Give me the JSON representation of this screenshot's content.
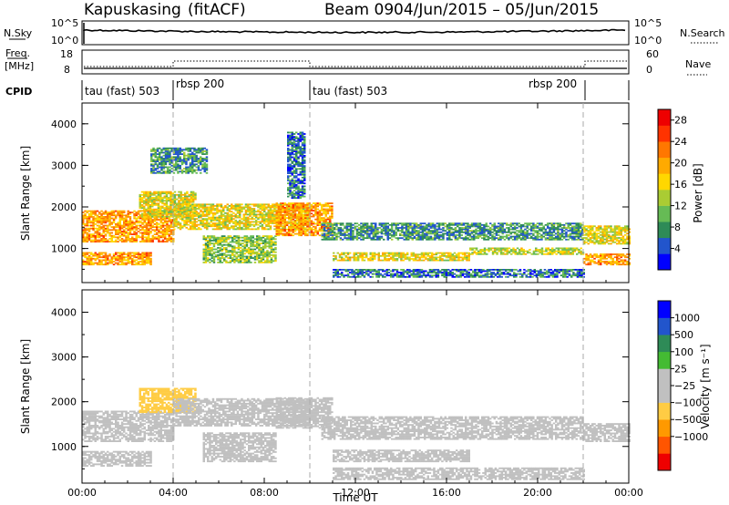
{
  "header": {
    "station": "Kapuskasing",
    "mode": "(fitACF)",
    "beam": "Beam 09",
    "dates": "04/Jun/2015 – 05/Jun/2015"
  },
  "top_panels": {
    "nsky_label": "N.Sky",
    "nsky_ticks": [
      "10^5",
      "10^0"
    ],
    "nsearch_label": "N.Search",
    "freq_label_line1": "Freq.",
    "freq_label_line2": "[MHz]",
    "freq_ticks": [
      "18",
      "8"
    ],
    "nave_ticks": [
      "60",
      "0"
    ],
    "nave_label": "Nave",
    "cpid_label": "CPID",
    "cpid_segments": [
      {
        "label": "tau (fast) 503",
        "start_hr": 0,
        "end_hr": 4
      },
      {
        "label": "rbsp 200",
        "start_hr": 4,
        "end_hr": 10
      },
      {
        "label": "tau (fast) 503",
        "start_hr": 10,
        "end_hr": 22
      },
      {
        "label": "rbsp 200",
        "start_hr": 22,
        "end_hr": 24
      }
    ]
  },
  "colors": {
    "power": [
      "#0000ff",
      "#2255cc",
      "#2e8b57",
      "#66bb55",
      "#aacc33",
      "#ffd700",
      "#ffaa00",
      "#ff7700",
      "#ff3300",
      "#ee0000"
    ],
    "velocity": [
      "#ee0000",
      "#ff5500",
      "#ff9900",
      "#ffcc44",
      "#c0c0c0",
      "#c0c0c0",
      "#44bb33",
      "#2e8b57",
      "#2255cc",
      "#0000ff"
    ]
  },
  "chart_data": [
    {
      "type": "heatmap",
      "name": "power",
      "title": "",
      "xlabel": "Time UT",
      "ylabel": "Slant Range [km]",
      "xlim": [
        0,
        24
      ],
      "ylim": [
        180,
        4500
      ],
      "x_ticks": [
        "00:00",
        "04:00",
        "08:00",
        "12:00",
        "16:00",
        "20:00",
        "00:00"
      ],
      "y_ticks": [
        1000,
        2000,
        3000,
        4000
      ],
      "colorbar": {
        "label": "Power [dB]",
        "ticks": [
          4,
          8,
          12,
          16,
          20,
          24,
          28
        ],
        "range": [
          0,
          30
        ]
      },
      "bands": [
        {
          "t0": 0.0,
          "t1": 4.0,
          "r0": 1150,
          "r1": 1900,
          "value": 20
        },
        {
          "t0": 0.0,
          "t1": 3.0,
          "r0": 600,
          "r1": 900,
          "value": 20
        },
        {
          "t0": 2.5,
          "t1": 5.0,
          "r0": 1750,
          "r1": 2350,
          "value": 16
        },
        {
          "t0": 3.0,
          "t1": 5.5,
          "r0": 2800,
          "r1": 3400,
          "value": 8
        },
        {
          "t0": 4.0,
          "t1": 10.0,
          "r0": 1450,
          "r1": 2050,
          "value": 16
        },
        {
          "t0": 5.3,
          "t1": 8.5,
          "r0": 650,
          "r1": 1300,
          "value": 12
        },
        {
          "t0": 8.5,
          "t1": 11.0,
          "r0": 1300,
          "r1": 2100,
          "value": 20
        },
        {
          "t0": 9.0,
          "t1": 9.8,
          "r0": 2200,
          "r1": 3800,
          "value": 6
        },
        {
          "t0": 10.5,
          "t1": 22.0,
          "r0": 1200,
          "r1": 1600,
          "value": 8
        },
        {
          "t0": 11.0,
          "t1": 17.0,
          "r0": 700,
          "r1": 900,
          "value": 16
        },
        {
          "t0": 11.0,
          "t1": 22.0,
          "r0": 300,
          "r1": 500,
          "value": 6
        },
        {
          "t0": 17.0,
          "t1": 22.0,
          "r0": 850,
          "r1": 1000,
          "value": 14
        },
        {
          "t0": 22.0,
          "t1": 24.0,
          "r0": 1100,
          "r1": 1550,
          "value": 16
        },
        {
          "t0": 22.0,
          "t1": 24.0,
          "r0": 600,
          "r1": 850,
          "value": 20
        }
      ]
    },
    {
      "type": "heatmap",
      "name": "velocity",
      "title": "",
      "xlabel": "Time UT",
      "ylabel": "Slant Range [km]",
      "xlim": [
        0,
        24
      ],
      "ylim": [
        180,
        4500
      ],
      "x_ticks": [
        "00:00",
        "04:00",
        "08:00",
        "12:00",
        "16:00",
        "20:00",
        "00:00"
      ],
      "y_ticks": [
        1000,
        2000,
        3000,
        4000
      ],
      "colorbar": {
        "label": "Velocity [m s⁻¹]",
        "ticks": [
          "1000",
          "500",
          "100",
          "25",
          "−25",
          "−100",
          "−500",
          "−1000"
        ]
      },
      "bands": [
        {
          "t0": 0.0,
          "t1": 4.0,
          "r0": 1100,
          "r1": 1800,
          "value": 0
        },
        {
          "t0": 0.0,
          "t1": 3.0,
          "r0": 550,
          "r1": 900,
          "value": 0
        },
        {
          "t0": 2.5,
          "t1": 5.0,
          "r0": 1750,
          "r1": 2300,
          "value": -300
        },
        {
          "t0": 4.0,
          "t1": 10.0,
          "r0": 1450,
          "r1": 2050,
          "value": 0
        },
        {
          "t0": 5.3,
          "t1": 8.5,
          "r0": 650,
          "r1": 1300,
          "value": 0
        },
        {
          "t0": 8.5,
          "t1": 11.0,
          "r0": 1400,
          "r1": 2100,
          "value": 0
        },
        {
          "t0": 10.5,
          "t1": 22.0,
          "r0": 1150,
          "r1": 1650,
          "value": 0
        },
        {
          "t0": 11.0,
          "t1": 22.0,
          "r0": 250,
          "r1": 500,
          "value": -60
        },
        {
          "t0": 11.0,
          "t1": 17.0,
          "r0": 650,
          "r1": 900,
          "value": 0
        },
        {
          "t0": 22.0,
          "t1": 24.0,
          "r0": 1100,
          "r1": 1500,
          "value": 0
        }
      ]
    }
  ]
}
